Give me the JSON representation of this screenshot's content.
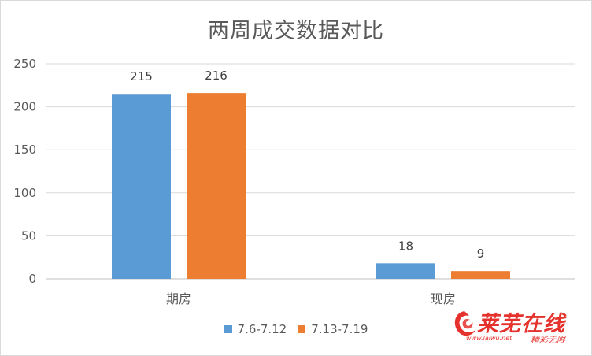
{
  "chart_data": {
    "type": "bar",
    "title": "两周成交数据对比",
    "categories": [
      "期房",
      "现房"
    ],
    "series": [
      {
        "name": "7.6-7.12",
        "values": [
          215,
          18
        ],
        "color": "#5b9bd5"
      },
      {
        "name": "7.13-7.19",
        "values": [
          216,
          9
        ],
        "color": "#ed7d31"
      }
    ],
    "ylim": [
      0,
      250
    ],
    "yticks": [
      0,
      50,
      100,
      150,
      200,
      250
    ],
    "grid": true,
    "legend_position": "bottom",
    "data_labels": true
  },
  "watermark": {
    "brand": "莱芜在线",
    "url": "www.laiwu.net",
    "slogan": "精彩无限"
  }
}
